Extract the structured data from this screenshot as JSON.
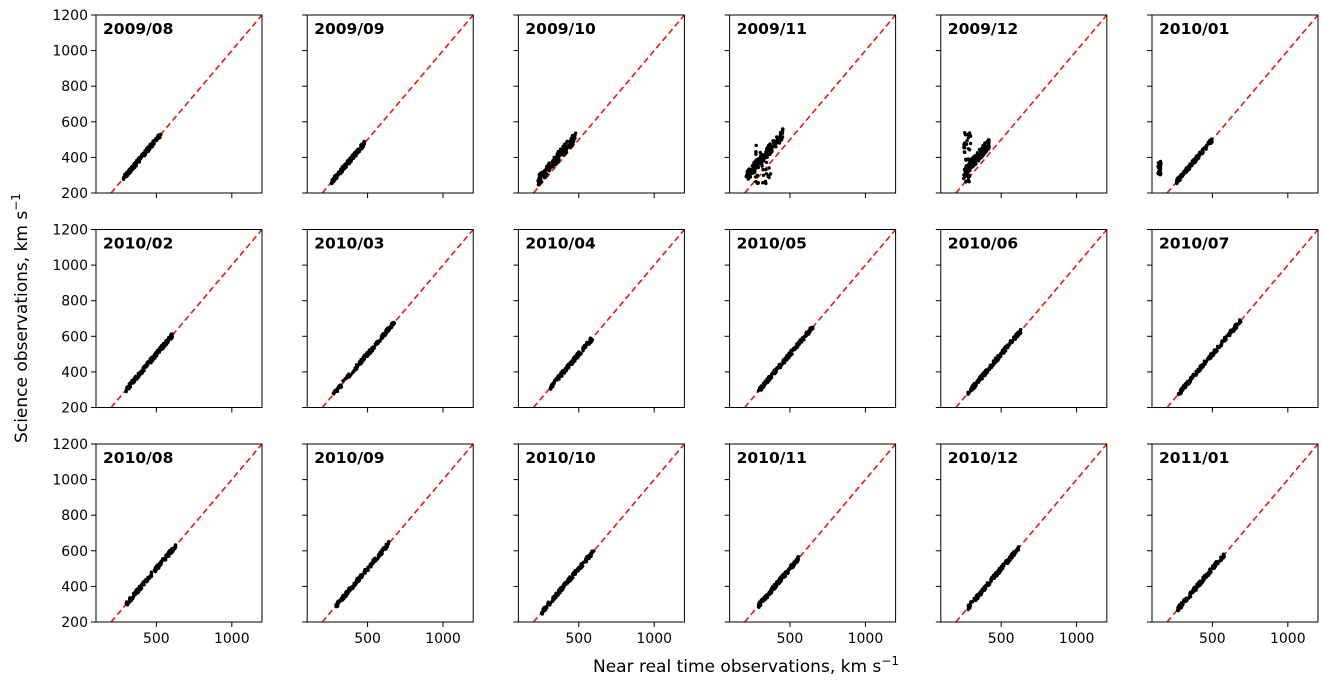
{
  "figure": {
    "xlabel": "Near real time observations, km s",
    "xlabel_sup": "−1",
    "ylabel": "Science observations, km s",
    "ylabel_sup": "−1"
  },
  "chart_data": {
    "type": "scatter",
    "layout": {
      "rows": 3,
      "cols": 6,
      "sharex": true,
      "sharey": true
    },
    "xlim": [
      100,
      1200
    ],
    "ylim": [
      200,
      1200
    ],
    "x_ticks": [
      500,
      1000
    ],
    "y_ticks": [
      200,
      400,
      600,
      800,
      1000,
      1200
    ],
    "point_color": "#000000",
    "reference_line": {
      "style": "dashed",
      "color": "#e8190f",
      "equation": "y = x"
    },
    "panels": [
      {
        "title": "2009/08",
        "x_range": [
          280,
          530
        ],
        "extra": []
      },
      {
        "title": "2009/09",
        "x_range": [
          260,
          480
        ],
        "extra": []
      },
      {
        "title": "2009/10",
        "x_range": [
          230,
          480
        ],
        "offset": 40,
        "extra": []
      },
      {
        "title": "2009/11",
        "x_range": [
          210,
          460
        ],
        "offset": 80,
        "extra": [
          {
            "x_range": [
              270,
              380
            ],
            "y_range": [
              250,
              480
            ]
          }
        ]
      },
      {
        "title": "2009/12",
        "x_range": [
          250,
          420
        ],
        "offset": 60,
        "extra": [
          {
            "x_range": [
              250,
              300
            ],
            "y_range": [
              260,
              540
            ]
          }
        ]
      },
      {
        "title": "2010/01",
        "x_range": [
          260,
          500
        ],
        "extra": [
          {
            "x_range": [
              140,
              160
            ],
            "y_range": [
              300,
              380
            ]
          }
        ]
      },
      {
        "title": "2010/02",
        "x_range": [
          300,
          610
        ],
        "extra": []
      },
      {
        "title": "2010/03",
        "x_range": [
          270,
          680
        ],
        "extra": []
      },
      {
        "title": "2010/04",
        "x_range": [
          310,
          590
        ],
        "extra": []
      },
      {
        "title": "2010/05",
        "x_range": [
          290,
          660
        ],
        "extra": []
      },
      {
        "title": "2010/06",
        "x_range": [
          280,
          630
        ],
        "extra": []
      },
      {
        "title": "2010/07",
        "x_range": [
          270,
          690
        ],
        "extra": []
      },
      {
        "title": "2010/08",
        "x_range": [
          300,
          630
        ],
        "extra": []
      },
      {
        "title": "2010/09",
        "x_range": [
          290,
          640
        ],
        "extra": []
      },
      {
        "title": "2010/10",
        "x_range": [
          250,
          600
        ],
        "extra": []
      },
      {
        "title": "2010/11",
        "x_range": [
          290,
          560
        ],
        "extra": []
      },
      {
        "title": "2010/12",
        "x_range": [
          280,
          620
        ],
        "extra": []
      },
      {
        "title": "2011/01",
        "x_range": [
          270,
          580
        ],
        "extra": []
      }
    ]
  }
}
